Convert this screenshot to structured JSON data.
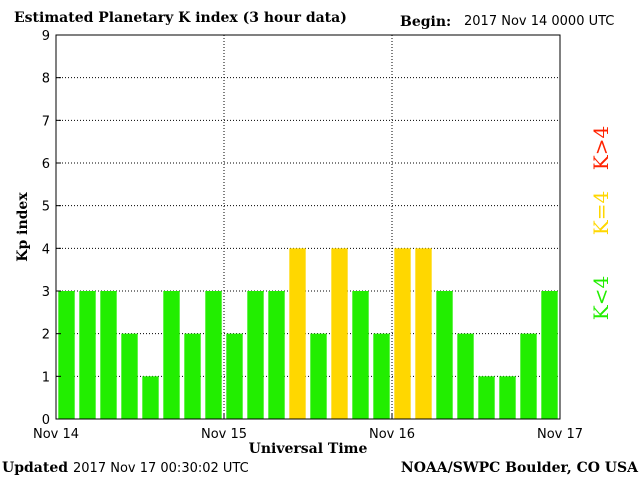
{
  "header": {
    "title": "Estimated Planetary K index (3 hour data)",
    "begin_label": "Begin:",
    "begin_value": "2017 Nov 14 0000 UTC"
  },
  "footer": {
    "updated_label": "Updated",
    "updated_value": "2017 Nov 17 00:30:02 UTC",
    "credit": "NOAA/SWPC Boulder, CO USA"
  },
  "chart_data": {
    "type": "bar",
    "title": "Estimated Planetary K index (3 hour data)",
    "xlabel": "Universal Time",
    "ylabel": "Kp index",
    "ylim": [
      0,
      9
    ],
    "yticks": [
      0,
      1,
      2,
      3,
      4,
      5,
      6,
      7,
      8,
      9
    ],
    "xticks": [
      "Nov 14",
      "Nov 15",
      "Nov 16",
      "Nov 17"
    ],
    "grid": true,
    "bars_per_day": 8,
    "values": [
      3,
      3,
      3,
      2,
      1,
      3,
      2,
      3,
      2,
      3,
      3,
      4,
      2,
      4,
      3,
      2,
      4,
      4,
      3,
      2,
      1,
      1,
      2,
      3
    ],
    "colors": {
      "below_4": "#22ee00",
      "equal_4": "#ffd700",
      "above_4": "#ff2200"
    },
    "legend": {
      "placement": "right",
      "items": [
        {
          "label": "K<4",
          "color": "#22ee00"
        },
        {
          "label": "K=4",
          "color": "#ffd700"
        },
        {
          "label": "K>4",
          "color": "#ff2200"
        }
      ]
    }
  }
}
